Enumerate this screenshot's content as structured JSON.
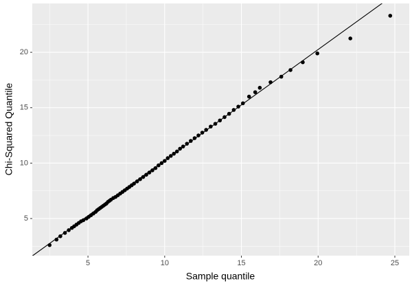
{
  "chart_data": {
    "type": "scatter",
    "x_label": "Sample quantile",
    "y_label": "Chi-Squared Quantile",
    "series": [
      {
        "color": "#000000",
        "x": [
          2.5,
          2.95,
          3.2,
          3.5,
          3.75,
          3.95,
          4.1,
          4.25,
          4.4,
          4.55,
          4.7,
          4.9,
          5.05,
          5.2,
          5.35,
          5.5,
          5.6,
          5.7,
          5.8,
          5.9,
          6.0,
          6.1,
          6.2,
          6.3,
          6.4,
          6.5,
          6.65,
          6.8,
          6.95,
          7.1,
          7.25,
          7.4,
          7.55,
          7.7,
          7.85,
          8.0,
          8.2,
          8.4,
          8.6,
          8.8,
          9.0,
          9.2,
          9.4,
          9.6,
          9.8,
          10.0,
          10.2,
          10.4,
          10.6,
          10.8,
          11.0,
          11.2,
          11.45,
          11.7,
          11.95,
          12.2,
          12.45,
          12.7,
          13.0,
          13.3,
          13.6,
          13.9,
          14.2,
          14.5,
          14.8,
          15.1,
          15.5,
          15.9,
          16.2,
          16.9,
          17.6,
          18.2,
          19.0,
          19.95,
          22.1,
          24.7
        ],
        "values": [
          2.6,
          3.1,
          3.4,
          3.7,
          3.95,
          4.15,
          4.3,
          4.45,
          4.6,
          4.75,
          4.85,
          5.0,
          5.15,
          5.3,
          5.45,
          5.6,
          5.75,
          5.85,
          5.95,
          6.05,
          6.15,
          6.25,
          6.35,
          6.5,
          6.6,
          6.7,
          6.85,
          6.95,
          7.1,
          7.25,
          7.4,
          7.55,
          7.7,
          7.85,
          8.0,
          8.15,
          8.35,
          8.55,
          8.75,
          8.95,
          9.15,
          9.35,
          9.55,
          9.8,
          10.0,
          10.2,
          10.45,
          10.65,
          10.85,
          11.05,
          11.3,
          11.5,
          11.75,
          12.0,
          12.25,
          12.5,
          12.75,
          13.0,
          13.3,
          13.55,
          13.85,
          14.15,
          14.45,
          14.8,
          15.1,
          15.4,
          16.0,
          16.4,
          16.8,
          17.3,
          17.8,
          18.4,
          19.1,
          19.9,
          21.25,
          23.3
        ]
      }
    ],
    "reference_line": {
      "slope": 1,
      "intercept": 0.25,
      "color": "#000000"
    },
    "xlim": [
      1.37,
      25.94
    ],
    "ylim": [
      1.65,
      24.41
    ],
    "xticks": [
      5,
      10,
      15,
      20,
      25
    ],
    "yticks": [
      5,
      10,
      15,
      20
    ],
    "x_minor": [
      2.5,
      7.5,
      12.5,
      17.5,
      22.5
    ],
    "y_minor": [
      2.5,
      7.5,
      12.5,
      17.5,
      22.5
    ],
    "grid": true
  }
}
